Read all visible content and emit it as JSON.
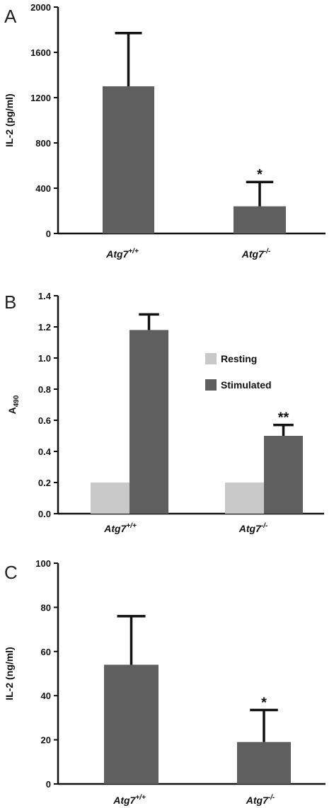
{
  "chart_data": [
    {
      "panel": "A",
      "type": "bar",
      "categories": [
        {
          "base": "Atg7",
          "sup": "+/+"
        },
        {
          "base": "Atg7",
          "sup": "-/-"
        }
      ],
      "series": [
        {
          "values": [
            1300,
            240
          ],
          "errors": [
            470,
            215
          ],
          "significance": [
            "",
            "*"
          ]
        }
      ],
      "ylabel": "IL-2 (pg/ml)",
      "ylim": [
        0,
        2000
      ],
      "yticks": [
        "0",
        "400",
        "800",
        "1200",
        "1600",
        "2000"
      ],
      "colors": {
        "bar": "#5f5f5f"
      }
    },
    {
      "panel": "B",
      "type": "bar",
      "categories": [
        {
          "base": "Atg7",
          "sup": "+/+"
        },
        {
          "base": "Atg7",
          "sup": "-/-"
        }
      ],
      "series": [
        {
          "name": "Resting",
          "values": [
            0.2,
            0.2
          ],
          "errors": [
            0,
            0
          ],
          "significance": [
            "",
            ""
          ]
        },
        {
          "name": "Stimulated",
          "values": [
            1.18,
            0.5
          ],
          "errors": [
            0.1,
            0.07
          ],
          "significance": [
            "",
            "**"
          ]
        }
      ],
      "ylabel": {
        "base": "A",
        "sub": "490"
      },
      "ylim": [
        0,
        1.4
      ],
      "yticks": [
        "0.0",
        "0.2",
        "0.4",
        "0.6",
        "0.8",
        "1.0",
        "1.2",
        "1.4"
      ],
      "legend": "right",
      "colors": {
        "Resting": "#c8c8c8",
        "Stimulated": "#5f5f5f"
      }
    },
    {
      "panel": "C",
      "type": "bar",
      "categories": [
        {
          "base": "Atg7",
          "sup": "+/+"
        },
        {
          "base": "Atg7",
          "sup": "-/-"
        }
      ],
      "series": [
        {
          "values": [
            54,
            19
          ],
          "errors": [
            22,
            14.5
          ],
          "significance": [
            "",
            "*"
          ]
        }
      ],
      "ylabel": "IL-2 (ng/ml)",
      "ylim": [
        0,
        100
      ],
      "yticks": [
        "0",
        "20",
        "40",
        "60",
        "80",
        "100"
      ],
      "colors": {
        "bar": "#5f5f5f"
      }
    }
  ]
}
